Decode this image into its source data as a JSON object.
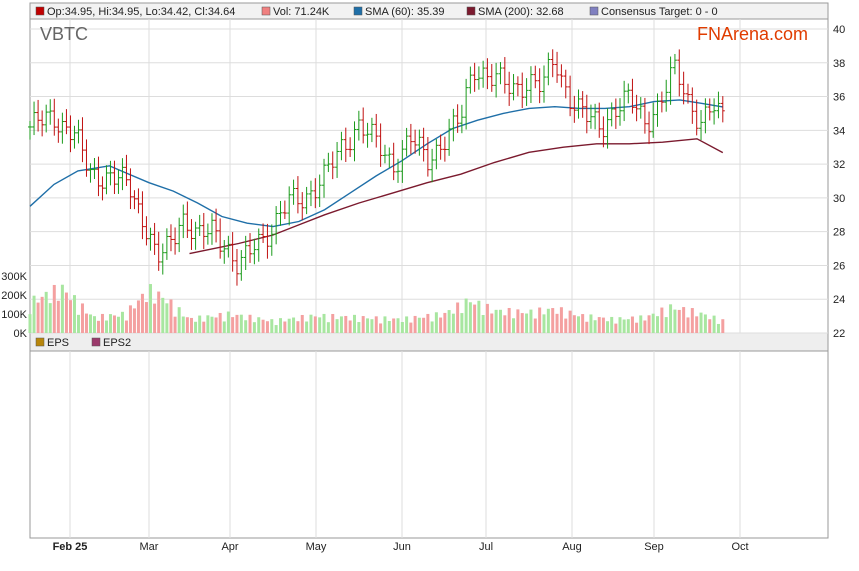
{
  "chart_data": {
    "type": "candlestick",
    "ticker": "VBTC",
    "brand": "FNArena.com",
    "legend": [
      {
        "key": "ohlc",
        "label": "Op:34.95, Hi:34.95, Lo:34.42, Cl:34.64",
        "color": "#c00000"
      },
      {
        "key": "vol",
        "label": "Vol: 71.24K",
        "color": "#f08080"
      },
      {
        "key": "sma60",
        "label": "SMA (60): 35.39",
        "color": "#1f6fa8"
      },
      {
        "key": "sma200",
        "label": "SMA (200): 32.68",
        "color": "#7b1a2e"
      },
      {
        "key": "target",
        "label": "Consensus Target: 0 - 0",
        "color": "#8080c0"
      }
    ],
    "lower_legend": [
      {
        "label": "EPS",
        "color": "#b8860b"
      },
      {
        "label": "EPS2",
        "color": "#9b3a6b"
      }
    ],
    "x_labels": [
      "Feb 25",
      "Mar",
      "Apr",
      "May",
      "Jun",
      "Jul",
      "Aug",
      "Sep",
      "Oct"
    ],
    "price_axis": {
      "min": 22,
      "max": 40,
      "ticks": [
        "22",
        "24",
        "26",
        "28",
        "30",
        "32",
        "34",
        "36",
        "38",
        "40"
      ]
    },
    "volume_axis": {
      "min": 0,
      "max": 300000,
      "ticks": [
        "0K",
        "100K",
        "200K",
        "300K"
      ]
    },
    "price_series": [
      {
        "m": 0.0,
        "c": 34.2
      },
      {
        "m": 0.3,
        "c": 34.8
      },
      {
        "m": 0.55,
        "c": 33.8
      },
      {
        "m": 0.75,
        "c": 31.5
      },
      {
        "m": 1.0,
        "c": 31.2
      },
      {
        "m": 1.25,
        "c": 30.8
      },
      {
        "m": 1.45,
        "c": 28.5
      },
      {
        "m": 1.6,
        "c": 26.2
      },
      {
        "m": 1.75,
        "c": 27.2
      },
      {
        "m": 1.9,
        "c": 29.0
      },
      {
        "m": 2.1,
        "c": 27.5
      },
      {
        "m": 2.3,
        "c": 28.3
      },
      {
        "m": 2.45,
        "c": 27.2
      },
      {
        "m": 2.6,
        "c": 25.6
      },
      {
        "m": 2.8,
        "c": 27.5
      },
      {
        "m": 3.0,
        "c": 28.2
      },
      {
        "m": 3.2,
        "c": 29.8
      },
      {
        "m": 3.4,
        "c": 30.2
      },
      {
        "m": 3.6,
        "c": 31.2
      },
      {
        "m": 3.8,
        "c": 33.0
      },
      {
        "m": 4.0,
        "c": 34.4
      },
      {
        "m": 4.2,
        "c": 33.2
      },
      {
        "m": 4.4,
        "c": 32.0
      },
      {
        "m": 4.6,
        "c": 33.5
      },
      {
        "m": 4.8,
        "c": 32.2
      },
      {
        "m": 5.0,
        "c": 33.5
      },
      {
        "m": 5.2,
        "c": 34.6
      },
      {
        "m": 5.35,
        "c": 37.8
      },
      {
        "m": 5.55,
        "c": 37.2
      },
      {
        "m": 5.8,
        "c": 36.4
      },
      {
        "m": 6.0,
        "c": 37.0
      },
      {
        "m": 6.15,
        "c": 36.5
      },
      {
        "m": 6.3,
        "c": 38.2
      },
      {
        "m": 6.45,
        "c": 36.2
      },
      {
        "m": 6.65,
        "c": 34.8
      },
      {
        "m": 6.85,
        "c": 34.2
      },
      {
        "m": 7.0,
        "c": 35.2
      },
      {
        "m": 7.2,
        "c": 35.8
      },
      {
        "m": 7.4,
        "c": 34.6
      },
      {
        "m": 7.55,
        "c": 35.4
      },
      {
        "m": 7.75,
        "c": 37.6
      },
      {
        "m": 7.9,
        "c": 35.8
      },
      {
        "m": 8.05,
        "c": 34.5
      },
      {
        "m": 8.2,
        "c": 35.3
      },
      {
        "m": 8.3,
        "c": 34.64
      }
    ],
    "sma60": [
      {
        "m": 0.0,
        "v": 29.5
      },
      {
        "m": 0.3,
        "v": 30.8
      },
      {
        "m": 0.6,
        "v": 31.6
      },
      {
        "m": 1.0,
        "v": 31.9
      },
      {
        "m": 1.2,
        "v": 31.5
      },
      {
        "m": 1.5,
        "v": 30.9
      },
      {
        "m": 1.8,
        "v": 30.4
      },
      {
        "m": 2.1,
        "v": 29.7
      },
      {
        "m": 2.4,
        "v": 28.9
      },
      {
        "m": 2.7,
        "v": 28.5
      },
      {
        "m": 3.0,
        "v": 28.3
      },
      {
        "m": 3.3,
        "v": 28.6
      },
      {
        "m": 3.6,
        "v": 29.3
      },
      {
        "m": 3.9,
        "v": 30.3
      },
      {
        "m": 4.2,
        "v": 31.3
      },
      {
        "m": 4.5,
        "v": 32.2
      },
      {
        "m": 4.8,
        "v": 33.2
      },
      {
        "m": 5.1,
        "v": 34.1
      },
      {
        "m": 5.4,
        "v": 34.6
      },
      {
        "m": 5.7,
        "v": 35.0
      },
      {
        "m": 6.0,
        "v": 35.3
      },
      {
        "m": 6.3,
        "v": 35.4
      },
      {
        "m": 6.6,
        "v": 35.3
      },
      {
        "m": 6.9,
        "v": 35.3
      },
      {
        "m": 7.2,
        "v": 35.4
      },
      {
        "m": 7.5,
        "v": 35.7
      },
      {
        "m": 7.8,
        "v": 35.8
      },
      {
        "m": 8.05,
        "v": 35.6
      },
      {
        "m": 8.3,
        "v": 35.39
      }
    ],
    "sma200": [
      {
        "m": 2.0,
        "v": 26.7
      },
      {
        "m": 2.3,
        "v": 27.0
      },
      {
        "m": 2.6,
        "v": 27.3
      },
      {
        "m": 3.0,
        "v": 27.8
      },
      {
        "m": 3.3,
        "v": 28.4
      },
      {
        "m": 3.6,
        "v": 29.0
      },
      {
        "m": 4.0,
        "v": 29.7
      },
      {
        "m": 4.4,
        "v": 30.3
      },
      {
        "m": 4.8,
        "v": 30.9
      },
      {
        "m": 5.2,
        "v": 31.4
      },
      {
        "m": 5.6,
        "v": 32.1
      },
      {
        "m": 6.0,
        "v": 32.7
      },
      {
        "m": 6.4,
        "v": 33.0
      },
      {
        "m": 6.8,
        "v": 33.2
      },
      {
        "m": 7.2,
        "v": 33.2
      },
      {
        "m": 7.6,
        "v": 33.3
      },
      {
        "m": 8.0,
        "v": 33.5
      },
      {
        "m": 8.3,
        "v": 32.68
      }
    ],
    "volume": [
      {
        "m": 0.0,
        "v": 180000
      },
      {
        "m": 0.4,
        "v": 260000
      },
      {
        "m": 0.8,
        "v": 90000
      },
      {
        "m": 1.2,
        "v": 110000
      },
      {
        "m": 1.5,
        "v": 250000
      },
      {
        "m": 1.7,
        "v": 200000
      },
      {
        "m": 2.0,
        "v": 80000
      },
      {
        "m": 2.5,
        "v": 110000
      },
      {
        "m": 3.0,
        "v": 70000
      },
      {
        "m": 3.5,
        "v": 100000
      },
      {
        "m": 4.0,
        "v": 90000
      },
      {
        "m": 4.5,
        "v": 80000
      },
      {
        "m": 5.0,
        "v": 110000
      },
      {
        "m": 5.3,
        "v": 190000
      },
      {
        "m": 5.6,
        "v": 130000
      },
      {
        "m": 6.0,
        "v": 120000
      },
      {
        "m": 6.3,
        "v": 140000
      },
      {
        "m": 6.6,
        "v": 100000
      },
      {
        "m": 7.0,
        "v": 80000
      },
      {
        "m": 7.4,
        "v": 90000
      },
      {
        "m": 7.7,
        "v": 150000
      },
      {
        "m": 8.0,
        "v": 120000
      },
      {
        "m": 8.3,
        "v": 71240
      }
    ]
  }
}
